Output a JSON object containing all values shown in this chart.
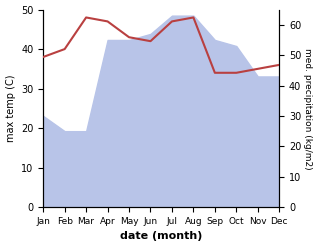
{
  "months": [
    "Jan",
    "Feb",
    "Mar",
    "Apr",
    "May",
    "Jun",
    "Jul",
    "Aug",
    "Sep",
    "Oct",
    "Nov",
    "Dec"
  ],
  "temperature": [
    38,
    40,
    48,
    47,
    43,
    42,
    47,
    48,
    34,
    34,
    35,
    36
  ],
  "precipitation": [
    30,
    25,
    25,
    55,
    55,
    57,
    63,
    63,
    55,
    53,
    43,
    43
  ],
  "temp_color": "#b94040",
  "precip_fill_color": "#b8c4e8",
  "xlabel": "date (month)",
  "ylabel_left": "max temp (C)",
  "ylabel_right": "med. precipitation (kg/m2)",
  "ylim_left": [
    0,
    50
  ],
  "ylim_right": [
    0,
    65
  ],
  "yticks_left": [
    0,
    10,
    20,
    30,
    40,
    50
  ],
  "yticks_right": [
    0,
    10,
    20,
    30,
    40,
    50,
    60
  ],
  "background_color": "#ffffff"
}
